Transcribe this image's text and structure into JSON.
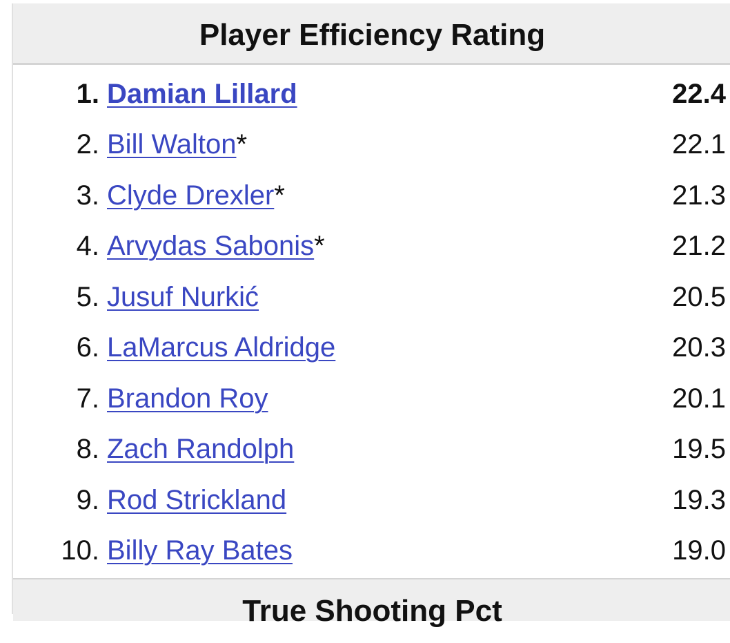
{
  "sections": [
    {
      "title": "Player Efficiency Rating",
      "rows": [
        {
          "rank": "1.",
          "name": "Damian Lillard",
          "suffix": "",
          "value": "22.4"
        },
        {
          "rank": "2.",
          "name": "Bill Walton",
          "suffix": "*",
          "value": "22.1"
        },
        {
          "rank": "3.",
          "name": "Clyde Drexler",
          "suffix": "*",
          "value": "21.3"
        },
        {
          "rank": "4.",
          "name": "Arvydas Sabonis",
          "suffix": "*",
          "value": "21.2"
        },
        {
          "rank": "5.",
          "name": "Jusuf Nurkić",
          "suffix": "",
          "value": "20.5"
        },
        {
          "rank": "6.",
          "name": "LaMarcus Aldridge",
          "suffix": "",
          "value": "20.3"
        },
        {
          "rank": "7.",
          "name": "Brandon Roy",
          "suffix": "",
          "value": "20.1"
        },
        {
          "rank": "8.",
          "name": "Zach Randolph",
          "suffix": "",
          "value": "19.5"
        },
        {
          "rank": "9.",
          "name": "Rod Strickland",
          "suffix": "",
          "value": "19.3"
        },
        {
          "rank": "10.",
          "name": "Billy Ray Bates",
          "suffix": "",
          "value": "19.0"
        }
      ]
    },
    {
      "title": "True Shooting Pct",
      "rows": []
    }
  ]
}
